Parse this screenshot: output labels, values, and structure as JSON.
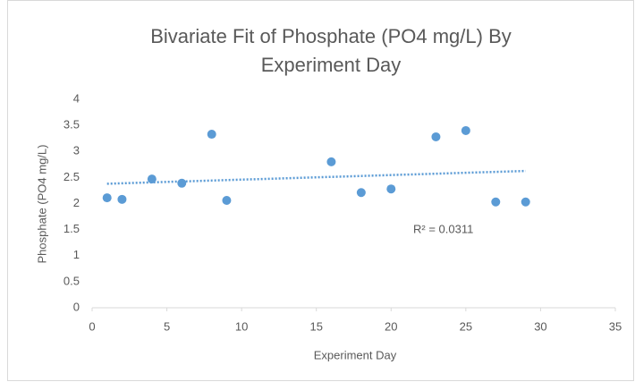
{
  "chart_data": {
    "type": "scatter",
    "title": [
      "Bivariate Fit of Phosphate (PO4 mg/L) By",
      "Experiment Day"
    ],
    "x_label": "Experiment Day",
    "y_label": "Phosphate (PO4 mg/L)",
    "annotation": "R² = 0.0311",
    "x": [
      1,
      2,
      4,
      6,
      8,
      9,
      16,
      18,
      20,
      23,
      25,
      27,
      29
    ],
    "values": [
      2.11,
      2.08,
      2.47,
      2.39,
      3.33,
      2.06,
      2.8,
      2.21,
      2.28,
      3.28,
      3.4,
      2.03,
      2.03
    ],
    "color": "#5b9bd5",
    "trendline": true,
    "xlim": [
      0,
      35
    ],
    "xticks": [
      0,
      5,
      10,
      15,
      20,
      25,
      30,
      35
    ],
    "ylim": [
      0,
      4
    ],
    "yticks": [
      0,
      0.5,
      1,
      1.5,
      2,
      2.5,
      3,
      3.5,
      4
    ],
    "grid": false
  }
}
